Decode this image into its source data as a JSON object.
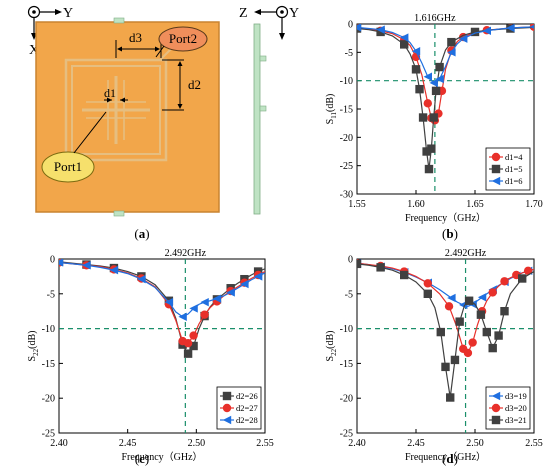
{
  "panel_a": {
    "caption": "(a)",
    "axes_left": {
      "x": "X",
      "y": "Y"
    },
    "axes_right": {
      "z": "Z",
      "y": "Y"
    },
    "dims": {
      "d1": "d1",
      "d2": "d2",
      "d3": "d3"
    },
    "port1": "Port1",
    "port2": "Port2",
    "colors": {
      "board": "#F2A64A",
      "board_edge": "#C98430",
      "trace": "#E6BE80",
      "side": "#BFE3C4"
    }
  },
  "chart_data": [
    {
      "id": "b",
      "type": "line",
      "caption": "(b)",
      "ylabel_main": "S",
      "ylabel_sub": "11",
      "ylabel_unit": "(dB)",
      "xlabel": "Frequency（GHz）",
      "xlim": [
        1.55,
        1.7
      ],
      "ylim": [
        -30,
        0
      ],
      "xticks": [
        1.55,
        1.6,
        1.65,
        1.7
      ],
      "xtick_labels": [
        "1.55",
        "1.60",
        "1.65",
        "1.70"
      ],
      "yticks": [
        0,
        -5,
        -10,
        -15,
        -20,
        -25,
        -30
      ],
      "ytick_labels": [
        "0",
        "-5",
        "-10",
        "-15",
        "-20",
        "-25",
        "-30"
      ],
      "vline": 1.616,
      "vline_label": "1.616GHz",
      "hline": -10,
      "legend_position": "lower-right",
      "series": [
        {
          "name": "d1=4",
          "color": "#E8302A",
          "marker": "circle",
          "x": [
            1.55,
            1.56,
            1.57,
            1.58,
            1.59,
            1.595,
            1.6,
            1.605,
            1.61,
            1.613,
            1.616,
            1.619,
            1.622,
            1.625,
            1.63,
            1.635,
            1.64,
            1.65,
            1.66,
            1.67,
            1.68,
            1.69,
            1.7
          ],
          "y": [
            -0.7,
            -0.9,
            -1.2,
            -1.7,
            -2.8,
            -3.8,
            -5.8,
            -9.0,
            -14.0,
            -16.6,
            -17.0,
            -15.8,
            -11.8,
            -8.0,
            -4.7,
            -3.1,
            -2.3,
            -1.5,
            -1.1,
            -0.9,
            -0.7,
            -0.6,
            -0.5
          ]
        },
        {
          "name": "d1=5",
          "color": "#404040",
          "marker": "square",
          "x": [
            1.55,
            1.56,
            1.57,
            1.58,
            1.59,
            1.595,
            1.6,
            1.603,
            1.606,
            1.609,
            1.611,
            1.613,
            1.615,
            1.617,
            1.62,
            1.625,
            1.63,
            1.64,
            1.65,
            1.66,
            1.68,
            1.7
          ],
          "y": [
            -0.8,
            -1.0,
            -1.4,
            -2.1,
            -3.6,
            -5.3,
            -8.0,
            -11.5,
            -16.5,
            -22.5,
            -25.6,
            -22.0,
            -16.5,
            -11.8,
            -7.6,
            -4.6,
            -3.2,
            -2.0,
            -1.4,
            -1.1,
            -0.8,
            -0.6
          ]
        },
        {
          "name": "d1=6",
          "color": "#1F6FE0",
          "marker": "triangle-left",
          "x": [
            1.55,
            1.56,
            1.57,
            1.58,
            1.59,
            1.595,
            1.6,
            1.605,
            1.61,
            1.615,
            1.62,
            1.625,
            1.63,
            1.635,
            1.64,
            1.65,
            1.66,
            1.67,
            1.68,
            1.69,
            1.7
          ],
          "y": [
            -0.6,
            -0.8,
            -1.0,
            -1.5,
            -2.4,
            -3.3,
            -4.8,
            -6.9,
            -9.3,
            -10.4,
            -9.7,
            -7.5,
            -5.0,
            -3.5,
            -2.6,
            -1.6,
            -1.2,
            -0.9,
            -0.7,
            -0.6,
            -0.5
          ]
        }
      ]
    },
    {
      "id": "c",
      "type": "line",
      "caption": "(c)",
      "ylabel_main": "S",
      "ylabel_sub": "22",
      "ylabel_unit": "(dB)",
      "xlabel": "Frequency（GHz）",
      "xlim": [
        2.4,
        2.55
      ],
      "ylim": [
        -25,
        0
      ],
      "xticks": [
        2.4,
        2.45,
        2.5,
        2.55
      ],
      "xtick_labels": [
        "2.40",
        "2.45",
        "2.50",
        "2.55"
      ],
      "yticks": [
        0,
        -5,
        -10,
        -15,
        -20,
        -25
      ],
      "ytick_labels": [
        "0",
        "-5",
        "-10",
        "-15",
        "-20",
        "-25"
      ],
      "vline": 2.492,
      "vline_label": "2.492GHz",
      "hline": -10,
      "legend_position": "lower-right",
      "series": [
        {
          "name": "d2=26",
          "color": "#404040",
          "marker": "square",
          "x": [
            2.4,
            2.41,
            2.42,
            2.43,
            2.44,
            2.45,
            2.46,
            2.47,
            2.48,
            2.485,
            2.49,
            2.494,
            2.498,
            2.502,
            2.506,
            2.51,
            2.515,
            2.52,
            2.525,
            2.53,
            2.535,
            2.54,
            2.545,
            2.55
          ],
          "y": [
            -0.4,
            -0.6,
            -0.8,
            -1.0,
            -1.3,
            -1.8,
            -2.5,
            -3.7,
            -6.0,
            -8.5,
            -12.3,
            -13.6,
            -12.5,
            -10.0,
            -8.2,
            -6.9,
            -5.8,
            -5.0,
            -4.2,
            -3.5,
            -2.9,
            -2.3,
            -1.8,
            -1.4
          ]
        },
        {
          "name": "d2=27",
          "color": "#E8302A",
          "marker": "circle",
          "x": [
            2.4,
            2.41,
            2.42,
            2.43,
            2.44,
            2.45,
            2.46,
            2.47,
            2.48,
            2.485,
            2.49,
            2.494,
            2.498,
            2.502,
            2.506,
            2.51,
            2.515,
            2.52,
            2.525,
            2.53,
            2.535,
            2.54,
            2.545,
            2.55
          ],
          "y": [
            -0.5,
            -0.7,
            -0.9,
            -1.1,
            -1.5,
            -2.0,
            -2.8,
            -4.0,
            -6.5,
            -8.8,
            -11.8,
            -12.1,
            -11.0,
            -9.3,
            -8.0,
            -7.0,
            -6.1,
            -5.3,
            -4.6,
            -4.0,
            -3.4,
            -2.8,
            -2.3,
            -1.8
          ]
        },
        {
          "name": "d2=28",
          "color": "#1F6FE0",
          "marker": "triangle-left",
          "x": [
            2.4,
            2.41,
            2.42,
            2.43,
            2.44,
            2.45,
            2.46,
            2.47,
            2.48,
            2.485,
            2.49,
            2.494,
            2.498,
            2.502,
            2.506,
            2.51,
            2.515,
            2.52,
            2.525,
            2.53,
            2.535,
            2.54,
            2.545,
            2.55
          ],
          "y": [
            -0.5,
            -0.7,
            -0.9,
            -1.2,
            -1.6,
            -2.1,
            -2.9,
            -4.1,
            -6.2,
            -7.6,
            -8.3,
            -7.9,
            -7.1,
            -6.5,
            -6.2,
            -6.0,
            -5.7,
            -5.3,
            -4.8,
            -4.2,
            -3.6,
            -3.0,
            -2.5,
            -2.0
          ]
        }
      ]
    },
    {
      "id": "d",
      "type": "line",
      "caption": "(d)",
      "ylabel_main": "S",
      "ylabel_sub": "22",
      "ylabel_unit": "(dB)",
      "xlabel": "Frequency（GHz）",
      "xlim": [
        2.4,
        2.55
      ],
      "ylim": [
        -25,
        0
      ],
      "xticks": [
        2.4,
        2.45,
        2.5,
        2.55
      ],
      "xtick_labels": [
        "2.40",
        "2.45",
        "2.50",
        "2.55"
      ],
      "yticks": [
        0,
        -5,
        -10,
        -15,
        -20,
        -25
      ],
      "ytick_labels": [
        "0",
        "-5",
        "-10",
        "-15",
        "-20",
        "-25"
      ],
      "vline": 2.492,
      "vline_label": "2.492GHz",
      "hline": -10,
      "legend_position": "lower-right",
      "series": [
        {
          "name": "d3=19",
          "color": "#1F6FE0",
          "marker": "triangle-left",
          "x": [
            2.4,
            2.41,
            2.42,
            2.43,
            2.44,
            2.45,
            2.46,
            2.47,
            2.48,
            2.485,
            2.49,
            2.494,
            2.498,
            2.502,
            2.506,
            2.51,
            2.515,
            2.52,
            2.525,
            2.53,
            2.535,
            2.54,
            2.545,
            2.55
          ],
          "y": [
            -0.6,
            -0.8,
            -1.1,
            -1.4,
            -1.9,
            -2.6,
            -3.4,
            -4.4,
            -5.6,
            -6.2,
            -6.6,
            -6.8,
            -6.5,
            -6.0,
            -5.5,
            -5.0,
            -4.4,
            -3.8,
            -3.3,
            -2.8,
            -2.4,
            -2.0,
            -1.7,
            -1.5
          ]
        },
        {
          "name": "d3=20",
          "color": "#E8302A",
          "marker": "circle",
          "x": [
            2.4,
            2.41,
            2.42,
            2.43,
            2.44,
            2.45,
            2.46,
            2.47,
            2.478,
            2.484,
            2.49,
            2.494,
            2.498,
            2.502,
            2.506,
            2.51,
            2.515,
            2.52,
            2.525,
            2.53,
            2.535,
            2.54,
            2.545,
            2.55
          ],
          "y": [
            -0.6,
            -0.8,
            -1.0,
            -1.3,
            -1.8,
            -2.5,
            -3.5,
            -5.0,
            -6.8,
            -9.5,
            -12.9,
            -13.5,
            -12.0,
            -9.5,
            -7.5,
            -6.0,
            -4.8,
            -3.9,
            -3.2,
            -2.7,
            -2.3,
            -2.0,
            -1.7,
            -1.5
          ]
        },
        {
          "name": "d3=21",
          "color": "#404040",
          "marker": "square",
          "x": [
            2.4,
            2.41,
            2.42,
            2.43,
            2.44,
            2.45,
            2.46,
            2.466,
            2.471,
            2.475,
            2.479,
            2.483,
            2.487,
            2.491,
            2.495,
            2.5,
            2.505,
            2.51,
            2.515,
            2.52,
            2.525,
            2.53,
            2.54,
            2.55
          ],
          "y": [
            -0.7,
            -0.9,
            -1.2,
            -1.6,
            -2.3,
            -3.3,
            -5.0,
            -7.0,
            -10.5,
            -15.5,
            -19.9,
            -14.5,
            -9.0,
            -6.7,
            -6.0,
            -6.5,
            -8.0,
            -10.5,
            -12.8,
            -11.0,
            -7.5,
            -5.0,
            -2.8,
            -1.8
          ]
        }
      ]
    }
  ]
}
